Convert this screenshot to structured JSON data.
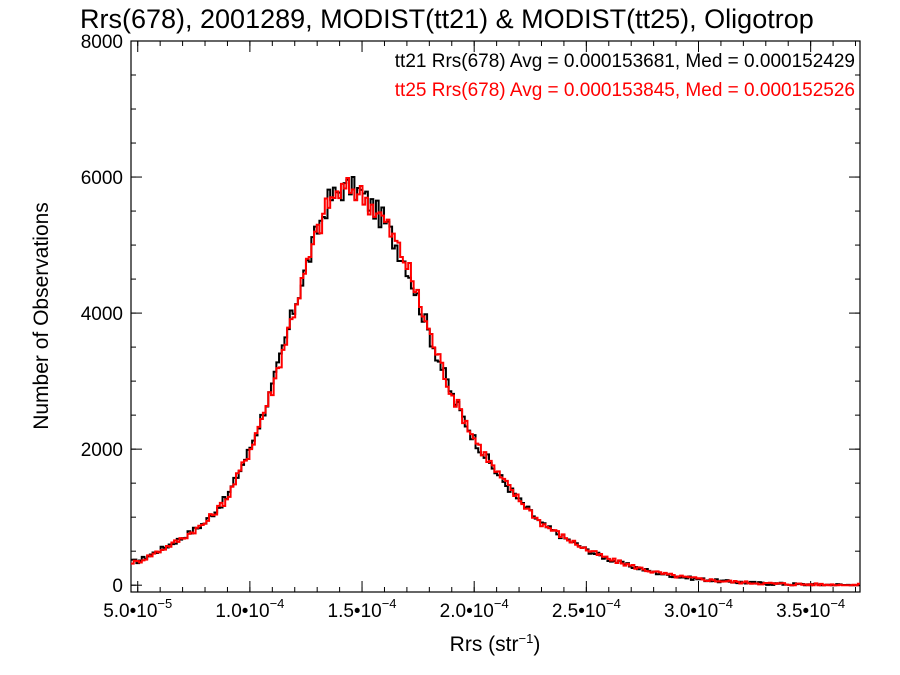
{
  "chart_data": {
    "type": "line",
    "title": "Rrs(678), 2001289, MODIST(tt21) & MODIST(tt25), Oligotrop",
    "xlabel_base": "Rrs (str",
    "xlabel_sup": "−1",
    "xlabel_close": ")",
    "ylabel": "Number of Observations",
    "xlim": [
      4.7e-05,
      0.000372
    ],
    "ylim": [
      -100,
      8000
    ],
    "x_ticks": [
      {
        "value": 5e-05,
        "mantissa": "5.0•10",
        "exp": "−5"
      },
      {
        "value": 0.0001,
        "mantissa": "1.0•10",
        "exp": "−4"
      },
      {
        "value": 0.00015,
        "mantissa": "1.5•10",
        "exp": "−4"
      },
      {
        "value": 0.0002,
        "mantissa": "2.0•10",
        "exp": "−4"
      },
      {
        "value": 0.00025,
        "mantissa": "2.5•10",
        "exp": "−4"
      },
      {
        "value": 0.0003,
        "mantissa": "3.0•10",
        "exp": "−4"
      },
      {
        "value": 0.00035,
        "mantissa": "3.5•10",
        "exp": "−4"
      }
    ],
    "y_ticks": [
      {
        "value": 0,
        "label": "0"
      },
      {
        "value": 2000,
        "label": "2000"
      },
      {
        "value": 4000,
        "label": "4000"
      },
      {
        "value": 6000,
        "label": "6000"
      },
      {
        "value": 8000,
        "label": "8000"
      }
    ],
    "legend_position": "top-right",
    "legend": [
      {
        "text": "tt21 Rrs(678) Avg = 0.000153681, Med = 0.000152429",
        "color": "#000000"
      },
      {
        "text": "tt25 Rrs(678) Avg = 0.000153845, Med = 0.000152526",
        "color": "#ff0000"
      }
    ],
    "series": [
      {
        "color": "#000000",
        "style": "step",
        "x": [
          5e-05,
          6e-05,
          7e-05,
          8e-05,
          9e-05,
          0.0001,
          0.00011,
          0.00012,
          0.00013,
          0.000135,
          0.00014,
          0.000145,
          0.00015,
          0.000155,
          0.00016,
          0.00017,
          0.00018,
          0.00019,
          0.0002,
          0.00021,
          0.00022,
          0.00023,
          0.00024,
          0.00025,
          0.00026,
          0.00027,
          0.00028,
          0.00029,
          0.0003,
          0.00031,
          0.00032,
          0.00033,
          0.00034,
          0.00035,
          0.00036,
          0.00037
        ],
        "y": [
          350,
          520,
          700,
          920,
          1300,
          2000,
          2900,
          4100,
          5200,
          5650,
          5800,
          5850,
          5750,
          5550,
          5350,
          4700,
          3700,
          2800,
          2150,
          1650,
          1250,
          900,
          700,
          520,
          380,
          280,
          190,
          130,
          90,
          60,
          40,
          25,
          15,
          10,
          5,
          2
        ]
      },
      {
        "color": "#ff0000",
        "style": "step",
        "x": [
          5e-05,
          6e-05,
          7e-05,
          8e-05,
          9e-05,
          0.0001,
          0.00011,
          0.00012,
          0.00013,
          0.000135,
          0.00014,
          0.000145,
          0.00015,
          0.000155,
          0.00016,
          0.00017,
          0.00018,
          0.00019,
          0.0002,
          0.00021,
          0.00022,
          0.00023,
          0.00024,
          0.00025,
          0.00026,
          0.00027,
          0.00028,
          0.00029,
          0.0003,
          0.00031,
          0.00032,
          0.00033,
          0.00034,
          0.00035,
          0.00036,
          0.00037
        ],
        "y": [
          340,
          510,
          690,
          910,
          1280,
          1980,
          2880,
          4080,
          5180,
          5620,
          5780,
          5840,
          5740,
          5560,
          5360,
          4720,
          3720,
          2820,
          2160,
          1660,
          1260,
          910,
          710,
          525,
          385,
          285,
          195,
          132,
          92,
          62,
          41,
          26,
          16,
          10,
          5,
          2
        ]
      }
    ]
  }
}
